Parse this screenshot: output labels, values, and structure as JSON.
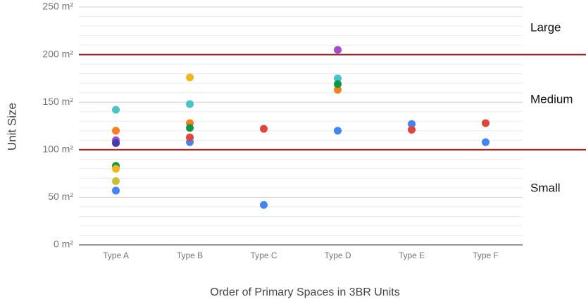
{
  "chart_data": {
    "type": "scatter",
    "categories": [
      "Type A",
      "Type B",
      "Type C",
      "Type D",
      "Type E",
      "Type F"
    ],
    "series": [
      {
        "color": "#4ac2c9",
        "values": [
          142,
          148,
          null,
          175,
          null,
          null
        ]
      },
      {
        "color": "#fa7d1e",
        "values": [
          120,
          128,
          null,
          163,
          null,
          null
        ]
      },
      {
        "color": "#a64bd0",
        "values": [
          110,
          null,
          null,
          205,
          null,
          null
        ]
      },
      {
        "color": "#3b3eac",
        "values": [
          107,
          null,
          null,
          null,
          null,
          null
        ]
      },
      {
        "color": "#109648",
        "values": [
          83,
          123,
          null,
          169,
          null,
          null
        ]
      },
      {
        "color": "#f2b61c",
        "values": [
          80,
          176,
          null,
          null,
          null,
          null
        ]
      },
      {
        "color": "#c8c232",
        "values": [
          67,
          null,
          null,
          null,
          null,
          null
        ]
      },
      {
        "color": "#4285f4",
        "values": [
          57,
          108,
          42,
          120,
          127,
          108
        ]
      },
      {
        "color": "#e0443a",
        "values": [
          null,
          113,
          122,
          null,
          121,
          128
        ]
      }
    ],
    "ylim": [
      0,
      250
    ],
    "yticks": [
      {
        "value": 0,
        "label": "0 m²"
      },
      {
        "value": 50,
        "label": "50 m²"
      },
      {
        "value": 100,
        "label": "100 m²"
      },
      {
        "value": 150,
        "label": "150 m²"
      },
      {
        "value": 200,
        "label": "200 m²"
      },
      {
        "value": 250,
        "label": "250 m²"
      }
    ],
    "minor_yticks": [
      10,
      20,
      30,
      40,
      60,
      70,
      80,
      90,
      110,
      120,
      130,
      140,
      160,
      170,
      180,
      190,
      210,
      220,
      230,
      240
    ],
    "grid": true,
    "y_label": "Unit Size",
    "x_label": "Order of Primary Spaces in 3BR Units",
    "reference_lines": [
      {
        "value": 100,
        "color": "#a51c1c"
      },
      {
        "value": 200,
        "color": "#a51c1c"
      }
    ],
    "annotations": [
      "Large",
      "Medium",
      "Small"
    ]
  }
}
